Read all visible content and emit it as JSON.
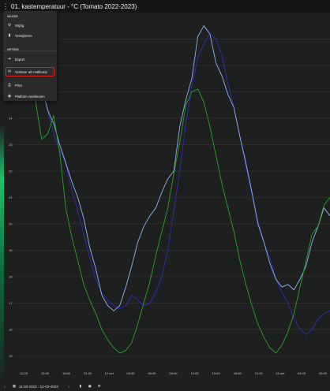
{
  "window": {
    "title": "01. kastemperatuur - °C (Tomato 2022-2023)"
  },
  "menu": {
    "section_edit": "WIJZIG",
    "edit_items": [
      {
        "label": "Wijzig",
        "icon": "gear-icon"
      },
      {
        "label": "Verwijderen",
        "icon": "trash-icon"
      }
    ],
    "section_options": "OPTIES",
    "option_items": [
      {
        "label": "Export",
        "icon": "export-icon"
      },
      {
        "label": "Verstuur als notificatie",
        "icon": "notification-icon",
        "highlighted": true
      },
      {
        "label": "Print",
        "icon": "print-icon"
      },
      {
        "label": "Platform voorkeuren",
        "icon": "preferences-icon"
      }
    ]
  },
  "footer": {
    "date_range": "11-03-2023 - 12-03-2023"
  },
  "colors": {
    "series_dark_blue": "#2d2dc0",
    "series_light_blue": "#8fb3f0",
    "series_green": "#2aa52a",
    "highlight": "#e02020"
  },
  "chart_data": {
    "type": "line",
    "yticks": [
      "15",
      "16",
      "17",
      "18",
      "19",
      "20",
      "21",
      "22",
      "23",
      "24",
      "25",
      "26",
      "27"
    ],
    "ylim": [
      14.5,
      28
    ],
    "xticks": [
      "12:00",
      "15:00",
      "18:00",
      "21:00",
      "12 mrt",
      "03:00",
      "06:00",
      "09:00",
      "12:00",
      "15:00",
      "18:00",
      "21:00",
      "13 mrt",
      "03:00",
      "06:00"
    ],
    "series": [
      {
        "color": "#2d2dc0",
        "values": [
          26.2,
          27.2,
          26.5,
          25.2,
          24.3,
          23.4,
          22.8,
          22.3,
          21.3,
          20.5,
          19.6,
          18.7,
          17.9,
          17.4,
          17.1,
          16.9,
          16.8,
          16.9,
          17.3,
          17.1,
          16.9,
          17.0,
          17.4,
          18.0,
          19.0,
          20.5,
          22.0,
          23.8,
          25.2,
          26.3,
          26.8,
          27.2,
          27.0,
          26.4,
          25.3,
          24.4,
          23.3,
          22.2,
          21.1,
          20.1,
          19.3,
          18.7,
          17.9,
          17.4,
          17.0,
          16.4,
          16.0,
          15.8,
          16.0,
          16.4,
          16.6,
          16.7
        ]
      },
      {
        "color": "#8fb3f0",
        "values": [
          26.0,
          26.8,
          26.0,
          25.2,
          24.3,
          23.8,
          23.0,
          22.3,
          21.6,
          21.0,
          20.2,
          19.1,
          18.3,
          17.3,
          16.9,
          16.7,
          16.9,
          17.6,
          18.4,
          19.3,
          19.9,
          20.3,
          20.6,
          21.2,
          21.7,
          22.0,
          23.7,
          24.7,
          25.5,
          27.1,
          27.5,
          27.2,
          26.1,
          25.6,
          24.9,
          24.4,
          23.3,
          22.3,
          21.2,
          20.0,
          19.3,
          18.5,
          17.9,
          17.6,
          17.7,
          17.5,
          17.9,
          18.4,
          19.3,
          19.9,
          20.6,
          20.3
        ]
      },
      {
        "color": "#2aa52a",
        "values": [
          25.3,
          25.4,
          24.6,
          23.2,
          23.4,
          24.1,
          22.7,
          20.6,
          19.5,
          18.6,
          17.7,
          17.1,
          16.6,
          16.0,
          15.6,
          15.3,
          15.1,
          15.2,
          15.5,
          16.2,
          17.0,
          17.8,
          18.8,
          19.7,
          20.6,
          21.9,
          23.1,
          24.5,
          25.0,
          25.1,
          24.6,
          23.7,
          22.6,
          21.5,
          20.6,
          19.7,
          18.6,
          17.7,
          16.9,
          16.2,
          15.7,
          15.3,
          15.1,
          15.4,
          15.9,
          16.6,
          17.6,
          18.6,
          19.6,
          19.9,
          20.7,
          21.0
        ]
      }
    ]
  }
}
